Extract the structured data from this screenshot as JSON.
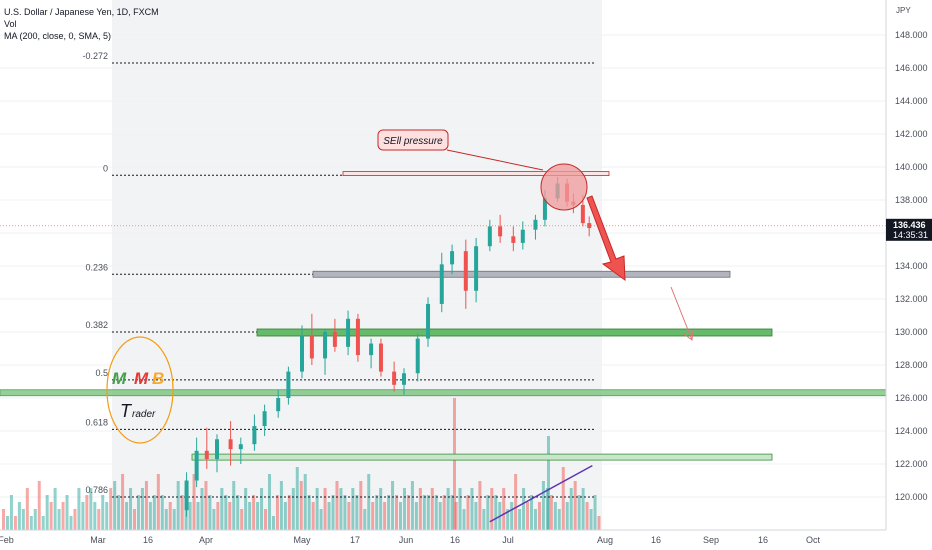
{
  "legend": {
    "symbol": "U.S. Dollar / Japanese Yen, 1D, FXCM",
    "volume": "Vol",
    "ma": "MA (200, close, 0, SMA, 5)"
  },
  "price_axis": {
    "currency": "JPY",
    "ticks": [
      "148.000",
      "146.000",
      "144.000",
      "142.000",
      "140.000",
      "138.000",
      "136.000",
      "134.000",
      "132.000",
      "130.000",
      "128.000",
      "126.000",
      "124.000",
      "122.000",
      "120.000"
    ],
    "last_price": "136.436",
    "countdown": "14:35:31"
  },
  "time_axis": {
    "ticks": [
      "Feb",
      "Mar",
      "16",
      "Apr",
      "May",
      "17",
      "Jun",
      "16",
      "Jul",
      "Aug",
      "16",
      "Sep",
      "16",
      "Oct"
    ]
  },
  "fib_levels": [
    {
      "label": "-0.272",
      "price": 146.3
    },
    {
      "label": "0",
      "price": 139.5
    },
    {
      "label": "0.236",
      "price": 133.5
    },
    {
      "label": "0.382",
      "price": 130.0
    },
    {
      "label": "0.5",
      "price": 127.1
    },
    {
      "label": "0.618",
      "price": 124.1
    },
    {
      "label": "0.786",
      "price": 120.0
    }
  ],
  "annotation": {
    "callout": "SEll pressure"
  },
  "logo": {
    "letters": [
      "M",
      "M",
      "B"
    ],
    "tagline": "rader",
    "tagline_initial": "T"
  },
  "colors": {
    "up": "#26a69a",
    "down": "#ef5350",
    "zone_green": "#81c784",
    "zone_gray": "#b2b5be",
    "zone_red": "#ef9a9a",
    "trend": "#5e35b1",
    "logo_ring": "#f39c12"
  },
  "chart_data": {
    "type": "candlestick",
    "instrument": "USD/JPY",
    "timeframe": "1D",
    "ylim": [
      119.3,
      149.2
    ],
    "series": [
      {
        "name": "price",
        "ohlc_points": [
          {
            "x": "Mar 28",
            "o": 119.2,
            "h": 121.5,
            "l": 118.8,
            "c": 121.0
          },
          {
            "x": "Mar 31",
            "o": 121.0,
            "h": 123.6,
            "l": 120.6,
            "c": 122.8
          },
          {
            "x": "Apr 3",
            "o": 122.8,
            "h": 124.2,
            "l": 121.7,
            "c": 122.3
          },
          {
            "x": "Apr 6",
            "o": 122.3,
            "h": 123.8,
            "l": 121.5,
            "c": 123.5
          },
          {
            "x": "Apr 10",
            "o": 123.5,
            "h": 124.6,
            "l": 121.9,
            "c": 122.9
          },
          {
            "x": "Apr 13",
            "o": 122.9,
            "h": 123.6,
            "l": 122.0,
            "c": 123.2
          },
          {
            "x": "Apr 17",
            "o": 123.2,
            "h": 125.0,
            "l": 122.8,
            "c": 124.3
          },
          {
            "x": "Apr 20",
            "o": 124.3,
            "h": 125.6,
            "l": 123.7,
            "c": 125.2
          },
          {
            "x": "Apr 24",
            "o": 125.2,
            "h": 126.5,
            "l": 124.8,
            "c": 126.0
          },
          {
            "x": "Apr 27",
            "o": 126.0,
            "h": 127.9,
            "l": 125.6,
            "c": 127.6
          },
          {
            "x": "May 1",
            "o": 127.6,
            "h": 130.4,
            "l": 127.2,
            "c": 129.8
          },
          {
            "x": "May 4",
            "o": 129.8,
            "h": 131.1,
            "l": 128.0,
            "c": 128.4
          },
          {
            "x": "May 8",
            "o": 128.4,
            "h": 130.2,
            "l": 127.4,
            "c": 130.0
          },
          {
            "x": "May 11",
            "o": 130.0,
            "h": 130.8,
            "l": 128.8,
            "c": 129.1
          },
          {
            "x": "May 15",
            "o": 129.1,
            "h": 131.3,
            "l": 128.6,
            "c": 130.8
          },
          {
            "x": "May 18",
            "o": 130.8,
            "h": 131.1,
            "l": 128.2,
            "c": 128.6
          },
          {
            "x": "May 22",
            "o": 128.6,
            "h": 129.6,
            "l": 127.8,
            "c": 129.3
          },
          {
            "x": "May 25",
            "o": 129.3,
            "h": 129.6,
            "l": 127.3,
            "c": 127.6
          },
          {
            "x": "May 29",
            "o": 127.6,
            "h": 128.2,
            "l": 126.4,
            "c": 126.8
          },
          {
            "x": "Jun 1",
            "o": 126.8,
            "h": 127.8,
            "l": 126.2,
            "c": 127.5
          },
          {
            "x": "Jun 5",
            "o": 127.5,
            "h": 129.9,
            "l": 127.0,
            "c": 129.6
          },
          {
            "x": "Jun 8",
            "o": 129.6,
            "h": 132.1,
            "l": 129.1,
            "c": 131.7
          },
          {
            "x": "Jun 12",
            "o": 131.7,
            "h": 134.8,
            "l": 131.2,
            "c": 134.1
          },
          {
            "x": "Jun 15",
            "o": 134.1,
            "h": 135.3,
            "l": 133.5,
            "c": 134.9
          },
          {
            "x": "Jun 19",
            "o": 134.9,
            "h": 135.6,
            "l": 131.4,
            "c": 132.5
          },
          {
            "x": "Jun 22",
            "o": 132.5,
            "h": 135.7,
            "l": 131.8,
            "c": 135.2
          },
          {
            "x": "Jun 26",
            "o": 135.2,
            "h": 136.8,
            "l": 134.9,
            "c": 136.4
          },
          {
            "x": "Jun 29",
            "o": 136.4,
            "h": 137.1,
            "l": 135.4,
            "c": 135.8
          },
          {
            "x": "Jul 3",
            "o": 135.8,
            "h": 136.4,
            "l": 134.9,
            "c": 135.4
          },
          {
            "x": "Jul 6",
            "o": 135.4,
            "h": 136.7,
            "l": 135.0,
            "c": 136.2
          },
          {
            "x": "Jul 10",
            "o": 136.2,
            "h": 137.1,
            "l": 135.6,
            "c": 136.8
          },
          {
            "x": "Jul 13",
            "o": 136.8,
            "h": 138.6,
            "l": 136.4,
            "c": 138.1
          },
          {
            "x": "Jul 17",
            "o": 138.1,
            "h": 139.4,
            "l": 137.9,
            "c": 139.0
          },
          {
            "x": "Jul 20",
            "o": 139.0,
            "h": 139.3,
            "l": 137.6,
            "c": 137.9
          },
          {
            "x": "Jul 22",
            "o": 137.9,
            "h": 138.4,
            "l": 137.2,
            "c": 137.7
          },
          {
            "x": "Jul 25",
            "o": 137.7,
            "h": 138.3,
            "l": 136.4,
            "c": 136.6
          },
          {
            "x": "Jul 27",
            "o": 136.6,
            "h": 137.0,
            "l": 135.8,
            "c": 136.3
          }
        ]
      }
    ],
    "moving_average": {
      "name": "MA (200, close, 0, SMA, 5)",
      "line": [
        {
          "x": "Jun 26",
          "y": 118.5
        },
        {
          "x": "Jul 28",
          "y": 121.9
        }
      ]
    },
    "volume": [
      3,
      2,
      5,
      2,
      4,
      3,
      6,
      2,
      3,
      7,
      2,
      5,
      4,
      6,
      3,
      4,
      5,
      2,
      3,
      6,
      4,
      5,
      6,
      4,
      3,
      5,
      4,
      6,
      7,
      5,
      8,
      4,
      6,
      3,
      5,
      6,
      7,
      4,
      5,
      8,
      5,
      3,
      4,
      3,
      7,
      5,
      6,
      4,
      8,
      4,
      6,
      7,
      5,
      3,
      4,
      6,
      5,
      4,
      7,
      5,
      3,
      6,
      4,
      5,
      4,
      6,
      3,
      8,
      2,
      5,
      7,
      4,
      5,
      6,
      9,
      7,
      8,
      5,
      4,
      6,
      3,
      6,
      4,
      5,
      7,
      6,
      5,
      4,
      6,
      5,
      7,
      3,
      8,
      4,
      5,
      6,
      4,
      5,
      7,
      5,
      4,
      6,
      5,
      7,
      4,
      6,
      5,
      5,
      6,
      5,
      4,
      5,
      6,
      5,
      4,
      6,
      3,
      5,
      6,
      4,
      7,
      3,
      5,
      6,
      5,
      4,
      6,
      3,
      4,
      8,
      3,
      6,
      4,
      5,
      3,
      4,
      7,
      6,
      5,
      4,
      3,
      9,
      4,
      6,
      7,
      5,
      6,
      4,
      3,
      5,
      2
    ],
    "time_axis": [
      "Feb",
      "Mar",
      "16",
      "Apr",
      "May",
      "17",
      "Jun",
      "16",
      "Jul",
      "Aug",
      "16",
      "Sep",
      "16",
      "Oct"
    ]
  }
}
